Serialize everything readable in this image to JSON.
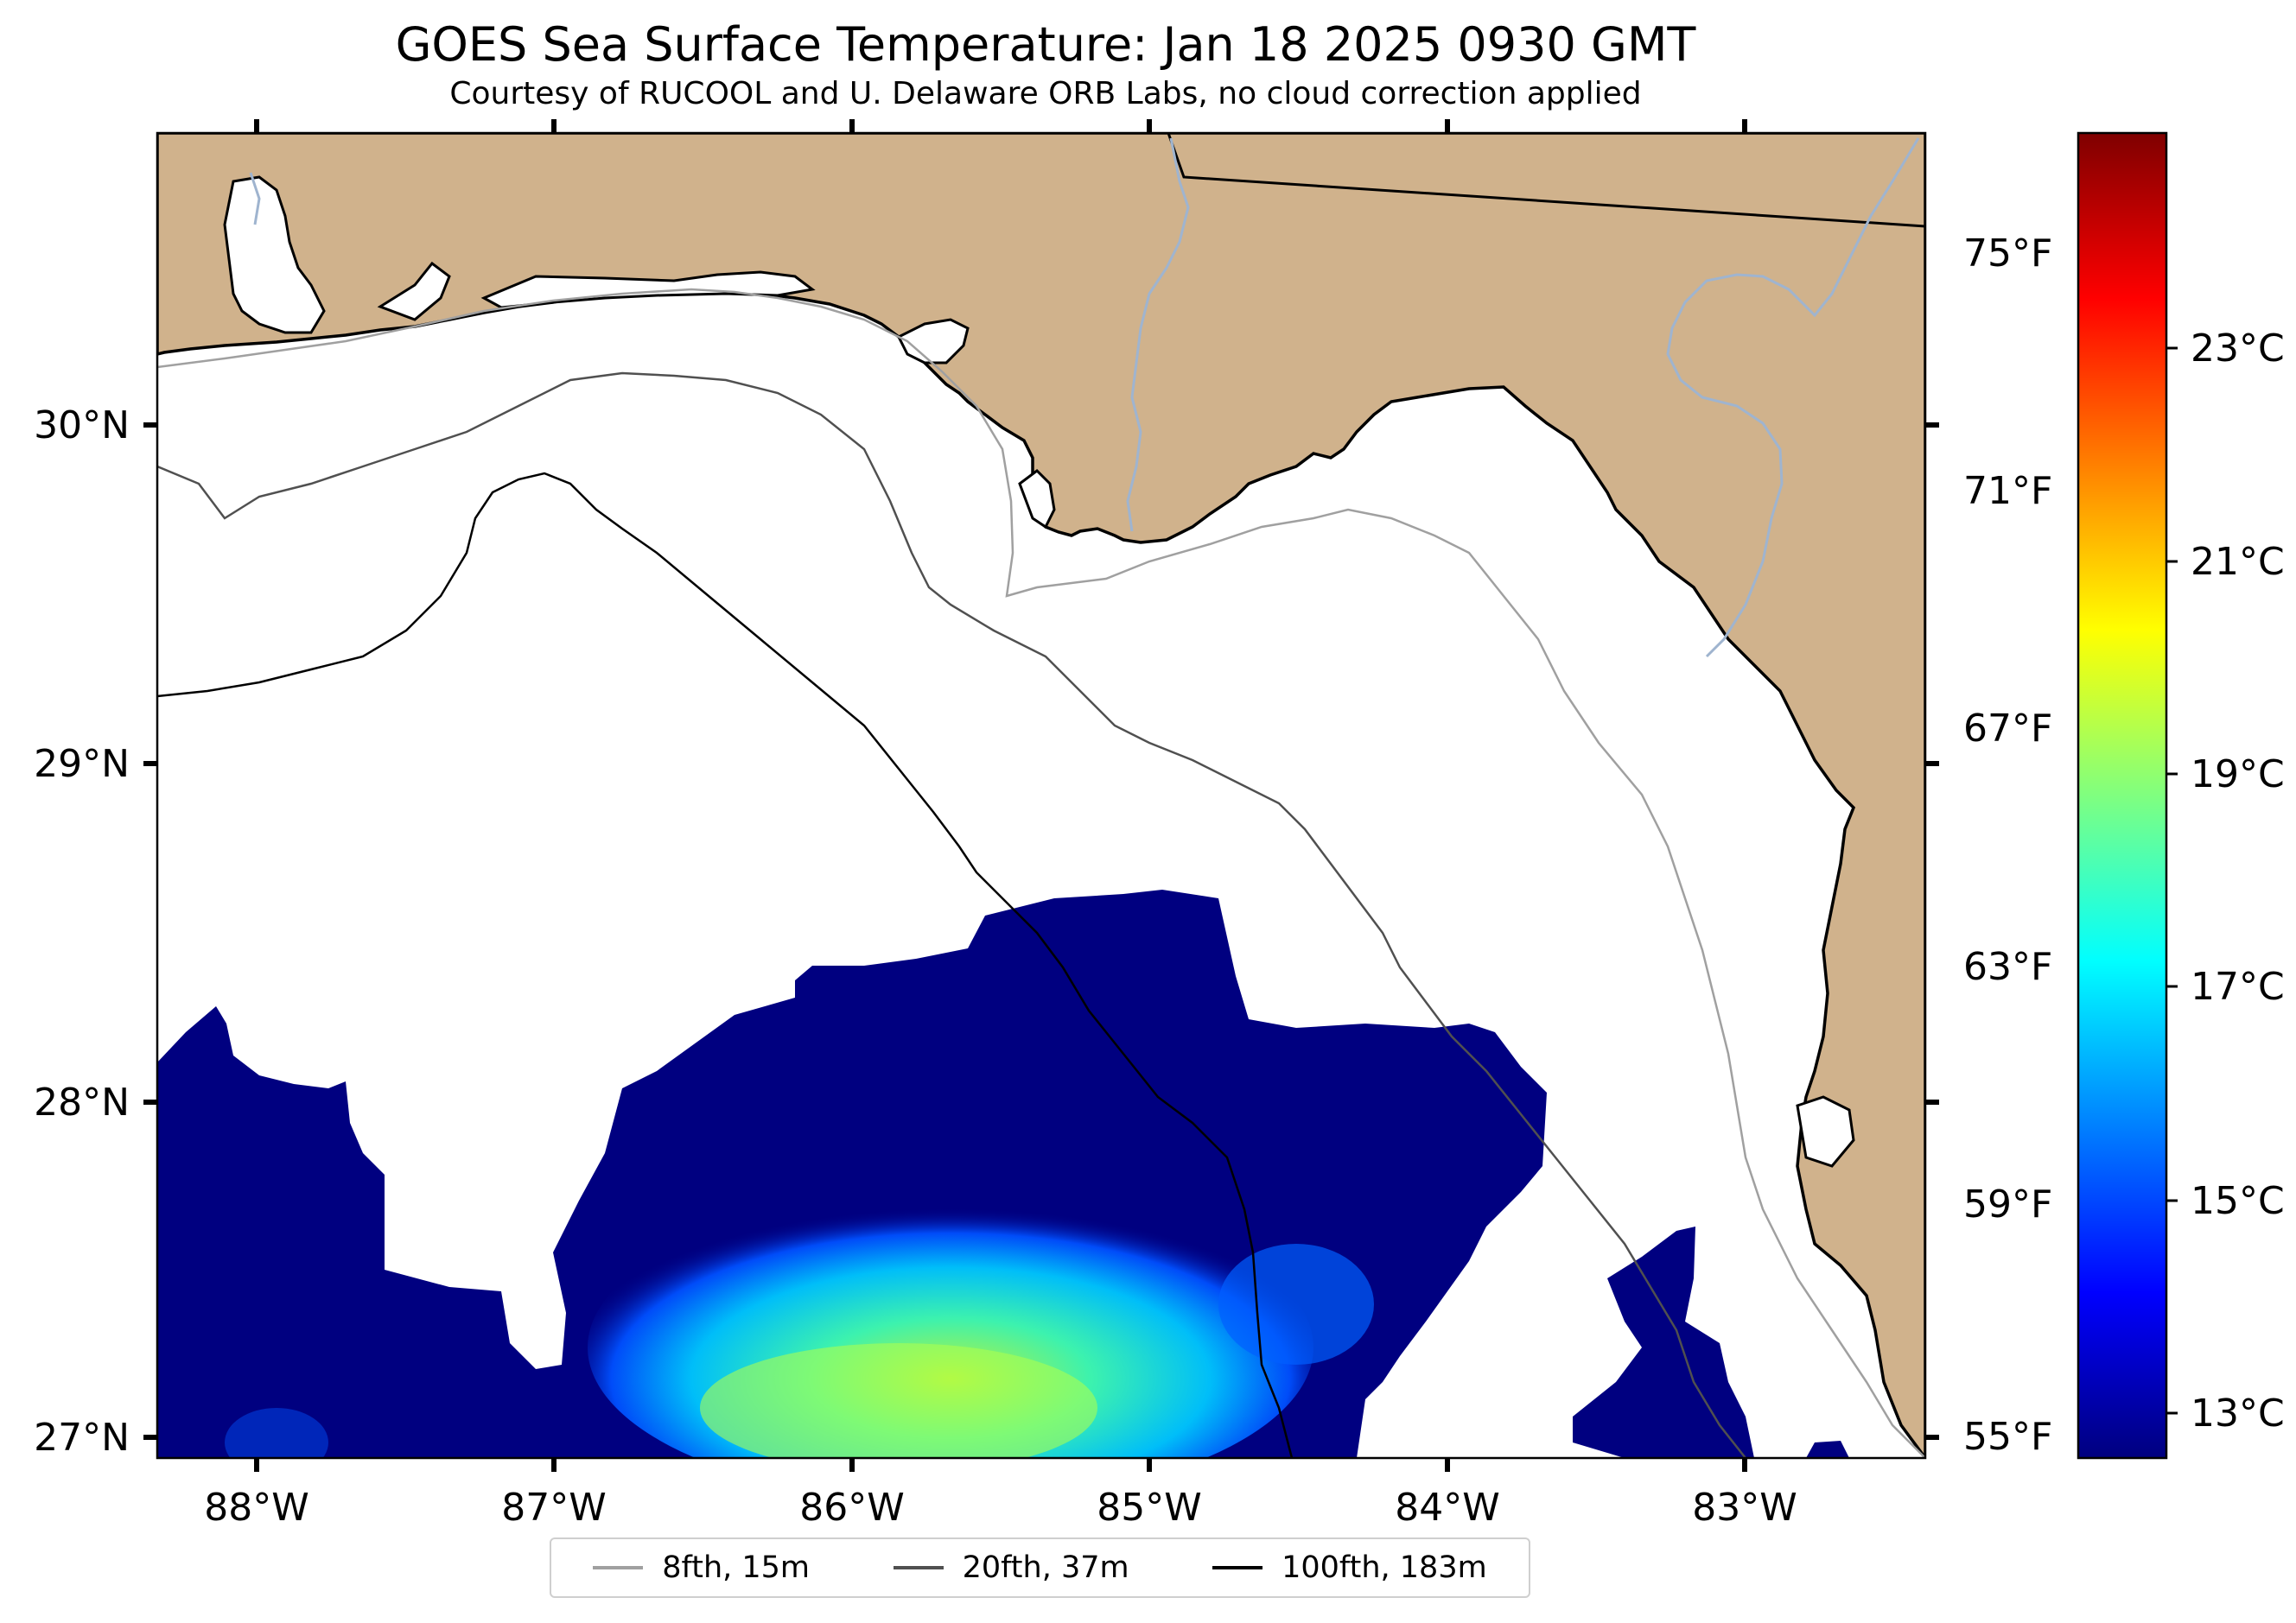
{
  "title": "GOES Sea Surface Temperature: Jan 18 2025 0930 GMT",
  "subtitle": "Courtesy of RUCOOL and U. Delaware ORB Labs, no cloud correction applied",
  "longitude_labels": [
    "88°W",
    "87°W",
    "86°W",
    "85°W",
    "84°W",
    "83°W"
  ],
  "latitude_labels": [
    "30°N",
    "29°N",
    "28°N",
    "27°N"
  ],
  "colorbar": {
    "fahrenheit_labels": [
      "75°F",
      "71°F",
      "67°F",
      "63°F",
      "59°F",
      "55°F"
    ],
    "celsius_labels": [
      "23°C",
      "21°C",
      "19°C",
      "17°C",
      "15°C",
      "13°C"
    ],
    "colormap": [
      "#00007f",
      "#0000ff",
      "#00ffff",
      "#ffff00",
      "#ff0000",
      "#7f0000"
    ]
  },
  "colors": {
    "land": "#d0b28c",
    "ocean": "#ffffff",
    "sst_cold": "#000080",
    "river": "#9fb4cf"
  },
  "legend": [
    {
      "label": "8fth, 15m",
      "color": "#a0a0a0"
    },
    {
      "label": "20fth, 37m",
      "color": "#505050"
    },
    {
      "label": "100fth, 183m",
      "color": "#000000"
    }
  ]
}
